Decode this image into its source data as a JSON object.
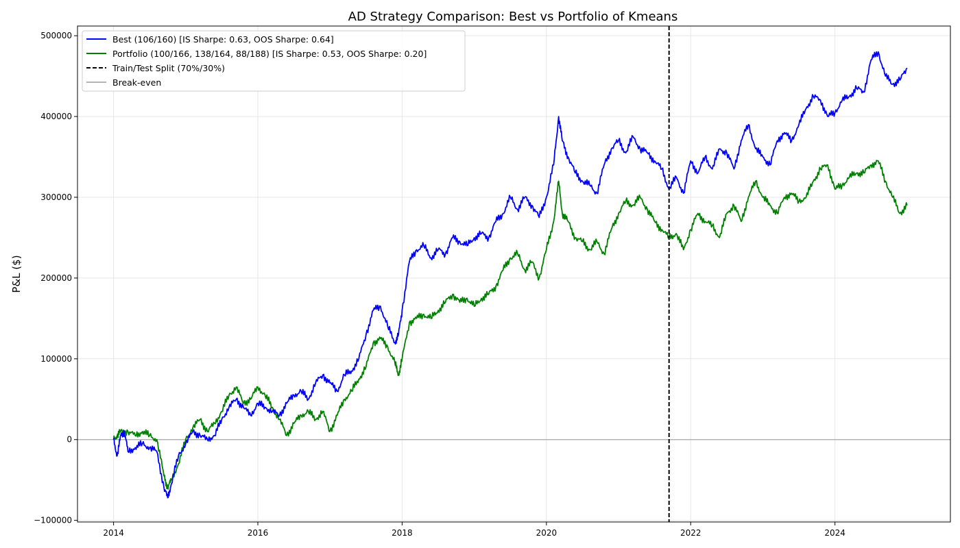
{
  "chart_data": {
    "type": "line",
    "title": "AD Strategy Comparison: Best vs Portfolio of Kmeans",
    "xlabel": "",
    "ylabel": "P&L ($)",
    "xlim": [
      2013.5,
      2025.6
    ],
    "ylim": [
      -102000,
      512000
    ],
    "x_ticks": [
      2014,
      2016,
      2018,
      2020,
      2022,
      2024
    ],
    "x_tick_labels": [
      "2014",
      "2016",
      "2018",
      "2020",
      "2022",
      "2024"
    ],
    "y_ticks": [
      -100000,
      0,
      100000,
      200000,
      300000,
      400000,
      500000
    ],
    "y_tick_labels": [
      "−100000",
      "0",
      "100000",
      "200000",
      "300000",
      "400000",
      "500000"
    ],
    "grid": true,
    "legend_position": "upper-left",
    "split_x": 2021.7,
    "breakeven_y": 0,
    "series": [
      {
        "name": "Best (106/160) [IS Sharpe: 0.63, OOS Sharpe: 0.64]",
        "color": "#0000ff",
        "x": [
          2014.0,
          2014.05,
          2014.1,
          2014.15,
          2014.2,
          2014.3,
          2014.4,
          2014.5,
          2014.6,
          2014.7,
          2014.75,
          2014.8,
          2014.9,
          2015.0,
          2015.1,
          2015.2,
          2015.3,
          2015.4,
          2015.5,
          2015.6,
          2015.7,
          2015.8,
          2015.9,
          2016.0,
          2016.1,
          2016.2,
          2016.3,
          2016.4,
          2016.5,
          2016.6,
          2016.7,
          2016.8,
          2016.9,
          2017.0,
          2017.1,
          2017.2,
          2017.3,
          2017.4,
          2017.5,
          2017.6,
          2017.7,
          2017.8,
          2017.9,
          2017.95,
          2018.0,
          2018.1,
          2018.2,
          2018.3,
          2018.4,
          2018.5,
          2018.6,
          2018.7,
          2018.8,
          2018.9,
          2019.0,
          2019.1,
          2019.2,
          2019.3,
          2019.4,
          2019.5,
          2019.6,
          2019.7,
          2019.8,
          2019.9,
          2020.0,
          2020.1,
          2020.17,
          2020.22,
          2020.3,
          2020.4,
          2020.5,
          2020.6,
          2020.7,
          2020.8,
          2020.9,
          2021.0,
          2021.1,
          2021.2,
          2021.3,
          2021.4,
          2021.5,
          2021.6,
          2021.7,
          2021.8,
          2021.9,
          2022.0,
          2022.1,
          2022.2,
          2022.3,
          2022.4,
          2022.5,
          2022.6,
          2022.7,
          2022.8,
          2022.9,
          2023.0,
          2023.1,
          2023.2,
          2023.3,
          2023.4,
          2023.5,
          2023.6,
          2023.7,
          2023.8,
          2023.9,
          2024.0,
          2024.1,
          2024.2,
          2024.3,
          2024.4,
          2024.5,
          2024.6,
          2024.7,
          2024.8,
          2024.9,
          2025.0
        ],
        "y": [
          0,
          -20000,
          5000,
          10000,
          -15000,
          -10000,
          -5000,
          -10000,
          -15000,
          -60000,
          -72000,
          -55000,
          -20000,
          -5000,
          10000,
          5000,
          0,
          5000,
          25000,
          40000,
          50000,
          40000,
          30000,
          45000,
          40000,
          35000,
          30000,
          45000,
          55000,
          60000,
          50000,
          70000,
          80000,
          70000,
          60000,
          80000,
          85000,
          100000,
          130000,
          160000,
          165000,
          140000,
          120000,
          130000,
          160000,
          220000,
          235000,
          240000,
          225000,
          235000,
          230000,
          250000,
          245000,
          240000,
          250000,
          255000,
          250000,
          270000,
          280000,
          300000,
          285000,
          300000,
          290000,
          275000,
          300000,
          340000,
          400000,
          370000,
          350000,
          330000,
          320000,
          315000,
          305000,
          340000,
          360000,
          370000,
          355000,
          375000,
          360000,
          355000,
          345000,
          335000,
          310000,
          325000,
          305000,
          345000,
          330000,
          350000,
          335000,
          360000,
          355000,
          335000,
          370000,
          390000,
          360000,
          350000,
          340000,
          370000,
          380000,
          370000,
          390000,
          410000,
          425000,
          420000,
          400000,
          405000,
          420000,
          425000,
          435000,
          430000,
          470000,
          480000,
          450000,
          440000,
          445000,
          460000
        ]
      },
      {
        "name": "Portfolio (100/166, 138/164, 88/188) [IS Sharpe: 0.53, OOS Sharpe: 0.20]",
        "color": "#008000",
        "x": [
          2014.0,
          2014.05,
          2014.1,
          2014.2,
          2014.3,
          2014.4,
          2014.5,
          2014.6,
          2014.7,
          2014.75,
          2014.8,
          2014.9,
          2015.0,
          2015.1,
          2015.2,
          2015.3,
          2015.4,
          2015.5,
          2015.6,
          2015.7,
          2015.8,
          2015.9,
          2016.0,
          2016.1,
          2016.2,
          2016.3,
          2016.4,
          2016.5,
          2016.6,
          2016.7,
          2016.8,
          2016.9,
          2017.0,
          2017.1,
          2017.2,
          2017.3,
          2017.4,
          2017.5,
          2017.6,
          2017.7,
          2017.8,
          2017.9,
          2017.95,
          2018.0,
          2018.1,
          2018.2,
          2018.3,
          2018.4,
          2018.5,
          2018.6,
          2018.7,
          2018.8,
          2018.9,
          2019.0,
          2019.1,
          2019.2,
          2019.3,
          2019.4,
          2019.5,
          2019.6,
          2019.7,
          2019.8,
          2019.9,
          2020.0,
          2020.1,
          2020.17,
          2020.22,
          2020.3,
          2020.4,
          2020.5,
          2020.6,
          2020.7,
          2020.8,
          2020.9,
          2021.0,
          2021.1,
          2021.2,
          2021.3,
          2021.4,
          2021.5,
          2021.6,
          2021.7,
          2021.8,
          2021.9,
          2022.0,
          2022.1,
          2022.2,
          2022.3,
          2022.4,
          2022.5,
          2022.6,
          2022.7,
          2022.8,
          2022.9,
          2023.0,
          2023.1,
          2023.2,
          2023.3,
          2023.4,
          2023.5,
          2023.6,
          2023.7,
          2023.8,
          2023.9,
          2024.0,
          2024.1,
          2024.2,
          2024.3,
          2024.4,
          2024.5,
          2024.6,
          2024.7,
          2024.8,
          2024.9,
          2025.0
        ],
        "y": [
          0,
          5000,
          10000,
          10000,
          5000,
          10000,
          5000,
          0,
          -45000,
          -60000,
          -50000,
          -30000,
          0,
          15000,
          25000,
          10000,
          20000,
          35000,
          55000,
          65000,
          45000,
          50000,
          65000,
          55000,
          40000,
          25000,
          5000,
          20000,
          30000,
          35000,
          25000,
          35000,
          10000,
          30000,
          50000,
          60000,
          75000,
          90000,
          120000,
          125000,
          115000,
          95000,
          80000,
          100000,
          145000,
          150000,
          155000,
          150000,
          160000,
          170000,
          180000,
          170000,
          175000,
          165000,
          175000,
          180000,
          190000,
          210000,
          225000,
          230000,
          210000,
          220000,
          200000,
          235000,
          270000,
          320000,
          280000,
          270000,
          250000,
          245000,
          235000,
          245000,
          230000,
          260000,
          280000,
          295000,
          290000,
          300000,
          285000,
          270000,
          260000,
          250000,
          255000,
          235000,
          260000,
          280000,
          270000,
          265000,
          250000,
          280000,
          290000,
          270000,
          300000,
          320000,
          300000,
          290000,
          280000,
          300000,
          305000,
          295000,
          300000,
          320000,
          335000,
          340000,
          310000,
          315000,
          325000,
          330000,
          330000,
          340000,
          345000,
          320000,
          300000,
          280000,
          290000
        ]
      },
      {
        "name": "Train/Test Split (70%/30%)",
        "color": "#000000",
        "style": "dashed"
      },
      {
        "name": "Break-even",
        "color": "#b3b3b3",
        "style": "solid"
      }
    ]
  }
}
